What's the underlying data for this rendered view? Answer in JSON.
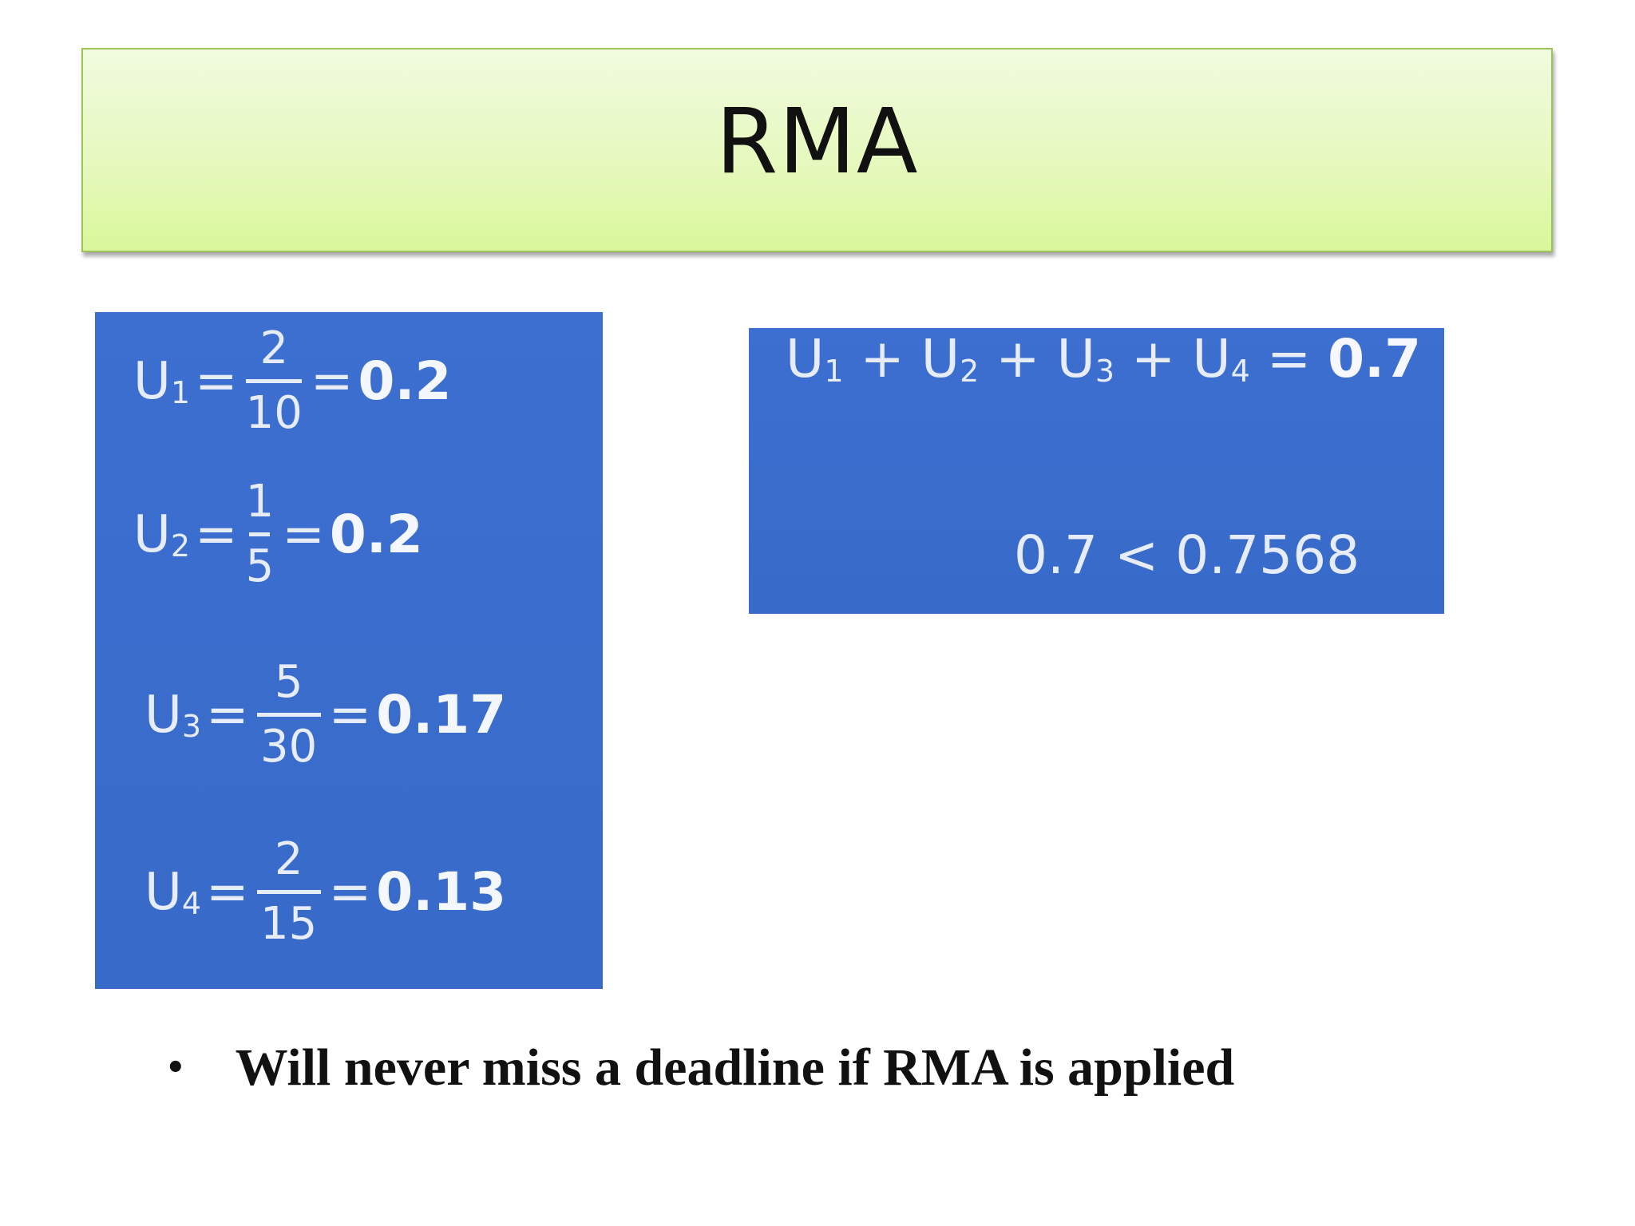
{
  "slide": {
    "title": "RMA"
  },
  "left_panel": {
    "equations": [
      {
        "var": "U",
        "sub": "1",
        "equals": "=",
        "numerator": "2",
        "denominator": "10",
        "result": "0.2"
      },
      {
        "var": "U",
        "sub": "2",
        "equals": "=",
        "numerator": "1",
        "denominator": "5",
        "result": "0.2"
      },
      {
        "var": "U",
        "sub": "3",
        "equals": "=",
        "numerator": "5",
        "denominator": "30",
        "result": "0.17"
      },
      {
        "var": "U",
        "sub": "4",
        "equals": "=",
        "numerator": "2",
        "denominator": "15",
        "result": "0.13"
      }
    ]
  },
  "right_panel": {
    "sum": {
      "terms": [
        "U",
        "U",
        "U",
        "U"
      ],
      "subs": [
        "1",
        "2",
        "3",
        "4"
      ],
      "plus": "+",
      "equals": "=",
      "result": "0.7"
    },
    "comparison": "0.7 < 0.7568"
  },
  "bullets": [
    {
      "marker": "•",
      "text": "Will never miss a deadline if RMA is applied"
    }
  ],
  "colors": {
    "title_fill": "#e6f9bf",
    "title_border": "#9cc35a",
    "panel_blue": "#3a6ccd"
  }
}
